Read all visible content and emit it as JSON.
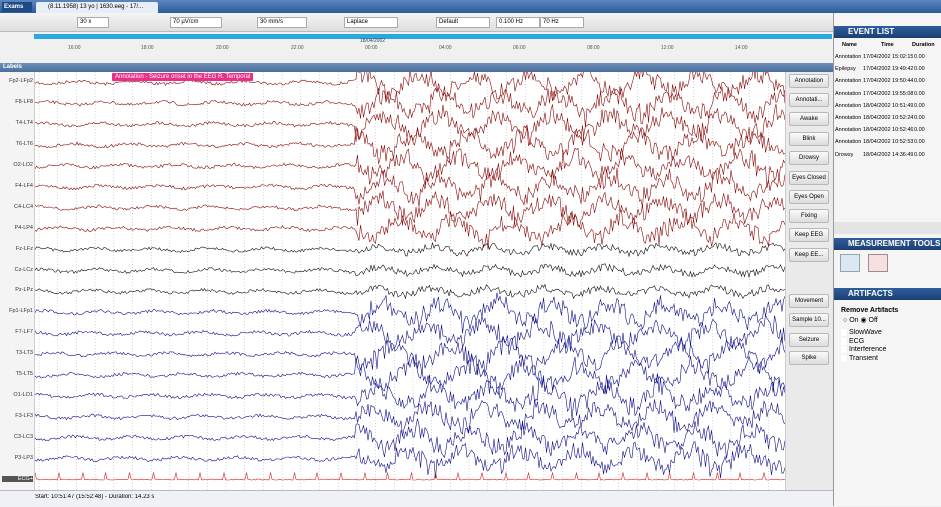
{
  "header": {
    "app": "Exams",
    "tab": "(8.11.1958) 13 yo | 1630.eeg - 17/..."
  },
  "toolbar": {
    "fields": [
      "30 x",
      "70 µV/cm",
      "30 mm/s",
      "Laplace",
      "Default",
      "0.100 Hz",
      "70 Hz"
    ]
  },
  "timeline": {
    "date": "18/04/2002",
    "times": [
      "16:00",
      "18:00",
      "20:00",
      "22:00",
      "00:00",
      "04:00",
      "06:00",
      "08:00",
      "12:00",
      "14:00"
    ]
  },
  "labels_header": "Labels",
  "channels": [
    "Fp2-LFp2",
    "F8-LF8",
    "T4-LT4",
    "T6-LT6",
    "O2-LO2",
    "F4-LF4",
    "C4-LC4",
    "P4-LP4",
    "Fz-LFz",
    "Cz-LCz",
    "Pz-LPz",
    "Fp1-LFp1",
    "F7-LF7",
    "T3-LT3",
    "T5-LT5",
    "O1-LO1",
    "F3-LF3",
    "C3-LC3",
    "P3-LP3",
    "ECG+"
  ],
  "annotation": "Annotation - Seizure onset in the EEG R. Temporal",
  "buttons": [
    "Annotation",
    "Annotati...",
    "Awake",
    "Blink",
    "Drowsy",
    "Eyes Closed",
    "Eyes Open",
    "Fixing",
    "Keep EEG",
    "Keep EE...",
    "Movement",
    "Sample 10...",
    "Seizure",
    "Spike"
  ],
  "status": "Start: 10:51:47 (15:52:48) - Duration: 14.23 s",
  "event_list": {
    "title": "EVENT LIST",
    "columns": [
      "Name",
      "Time",
      "Duration"
    ],
    "rows": [
      [
        "Annotation",
        "17/04/2002 15:02:15",
        "0.00"
      ],
      [
        "Epilepsy",
        "17/04/2002 19:49:42",
        "0.00"
      ],
      [
        "Annotation",
        "17/04/2002 19:50:44",
        "0.00"
      ],
      [
        "Annotation",
        "17/04/2002 19:55:08",
        "0.00"
      ],
      [
        "Annotation",
        "18/04/2002 10:51:49",
        "0.00"
      ],
      [
        "Annotation",
        "18/04/2002 10:52:24",
        "0.00"
      ],
      [
        "Annotation",
        "18/04/2002 10:52:46",
        "0.00"
      ],
      [
        "Annotation",
        "18/04/2002 10:52:53",
        "0.00"
      ],
      [
        "Drowsy",
        "18/04/2002 14:36:49",
        "0.00"
      ]
    ]
  },
  "measurement_tools": {
    "title": "MEASUREMENT TOOLS"
  },
  "artifacts": {
    "title": "ARTIFACTS",
    "remove": "Remove Artifacts",
    "on": "On",
    "off": "Off",
    "options": [
      "SlowWave",
      "ECG",
      "Interference",
      "Transient"
    ]
  }
}
